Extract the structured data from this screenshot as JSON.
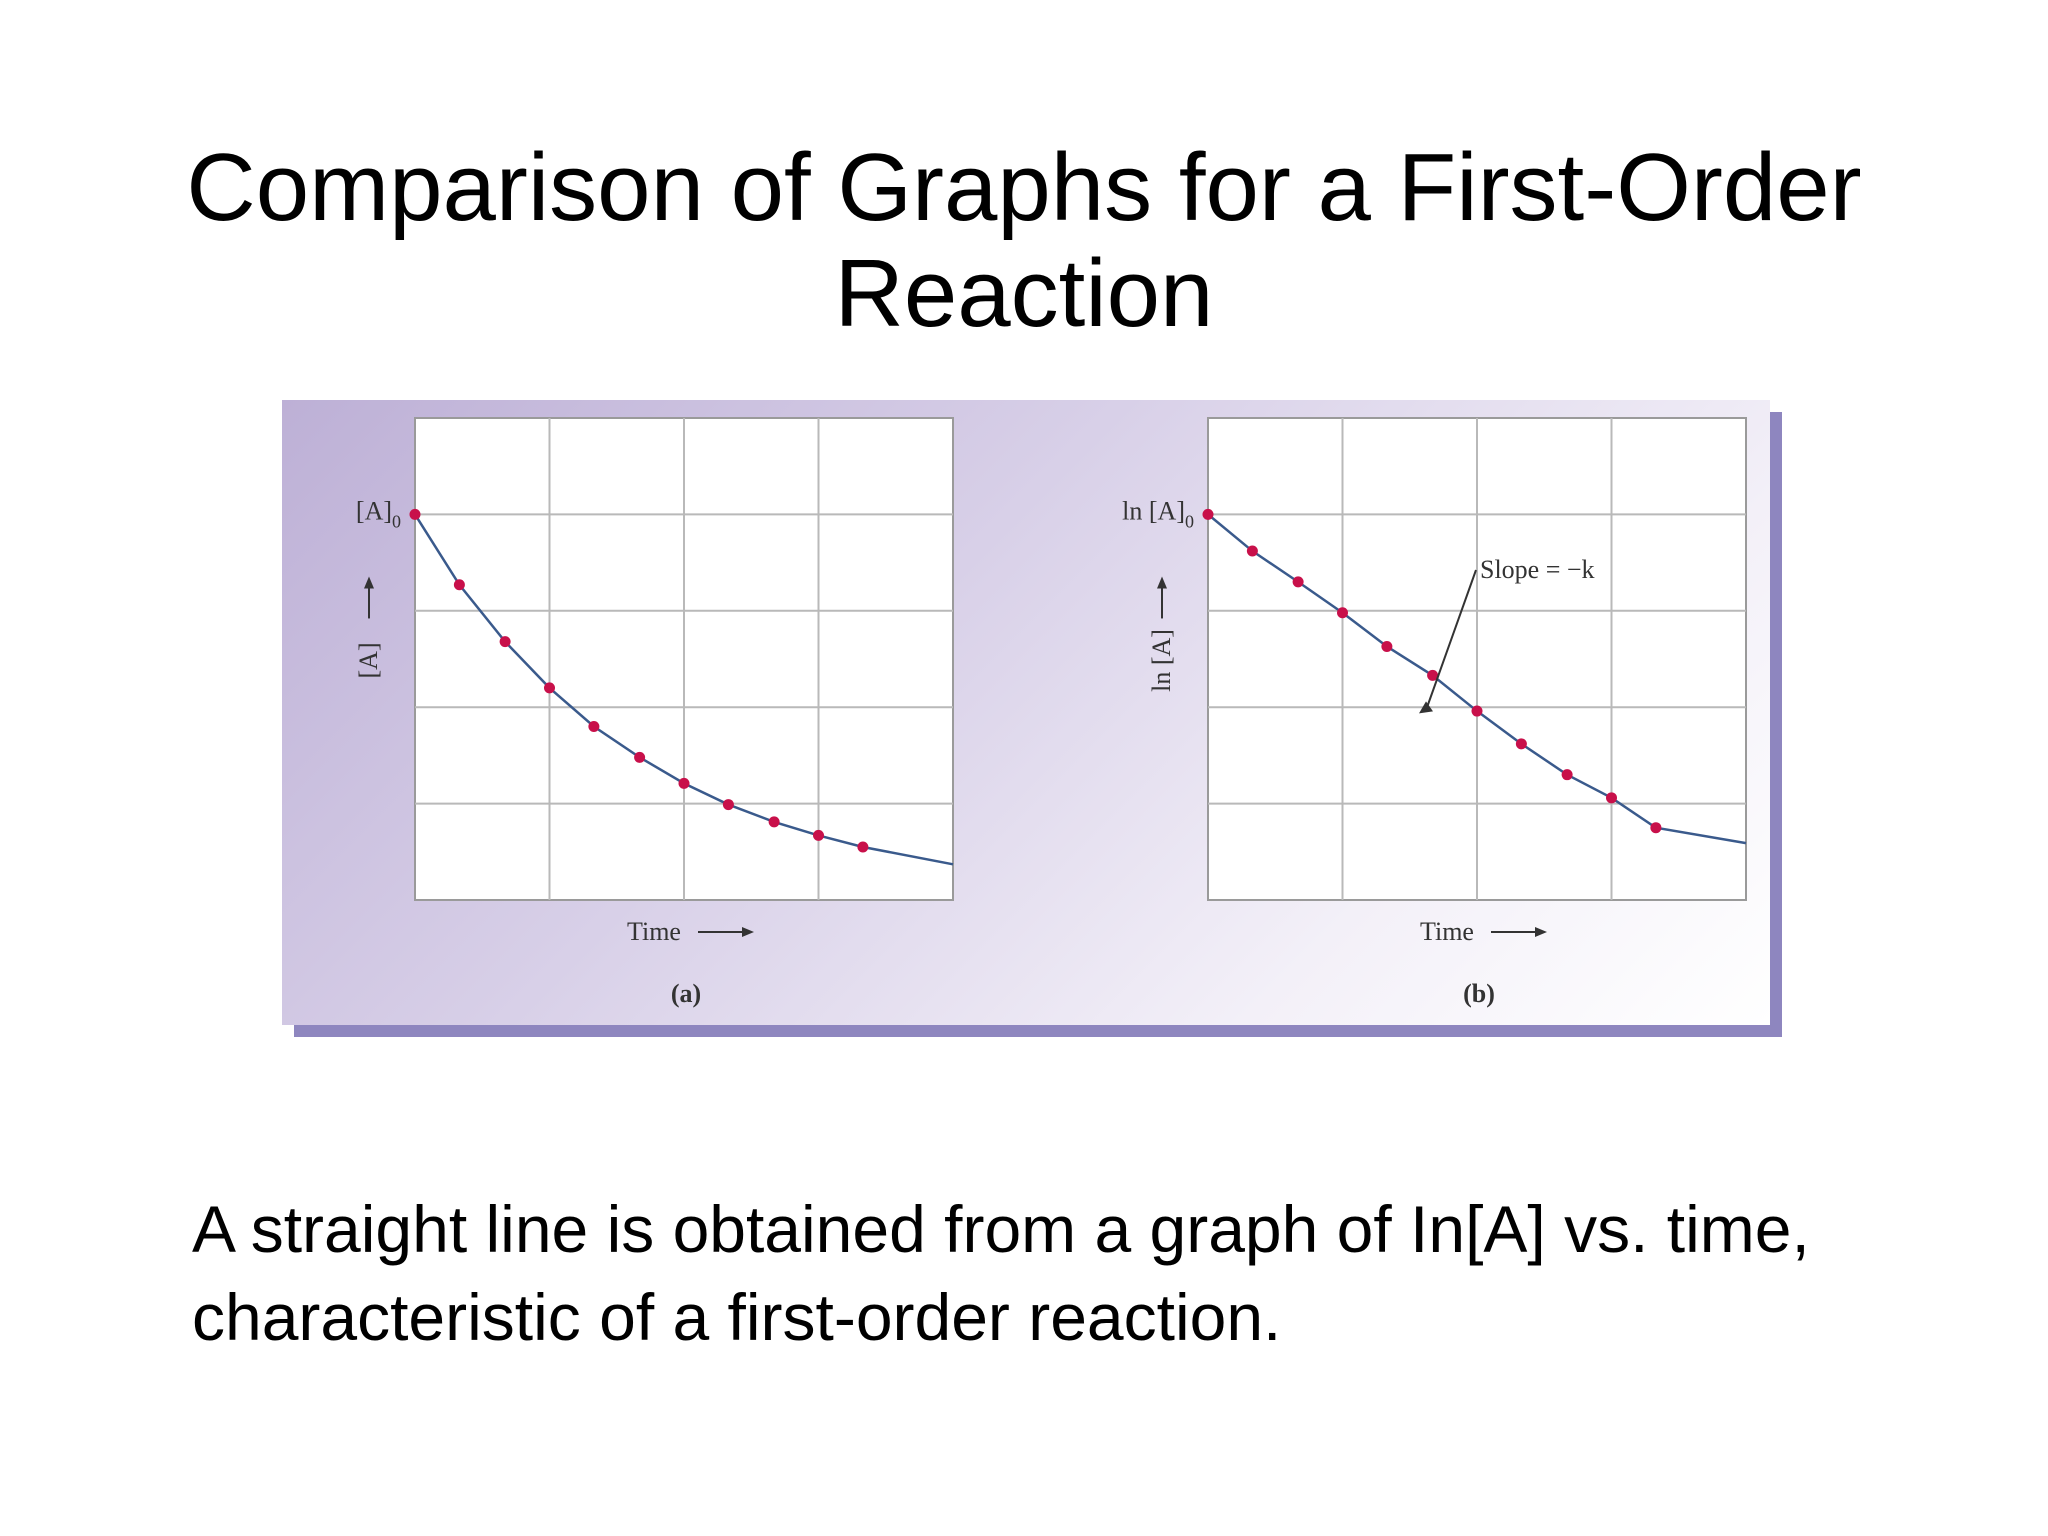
{
  "title": "Comparison of Graphs for a First-Order Reaction",
  "caption": {
    "line1": "A straight line is obtained from a graph of In[A] vs. time,",
    "line2": "characteristic of a first-order reaction."
  },
  "colors": {
    "curve": "#3a5a8c",
    "points": "#c8104a",
    "grid": "#b9b9b9",
    "panel_top": "#bdb0d6",
    "panel_shadow": "#8e86bf"
  },
  "chart_data": [
    {
      "type": "line",
      "panel_label": "(a)",
      "xlabel": "Time",
      "ylabel": "[A]",
      "y0_label": "[A]",
      "y0_subscript": "0",
      "xlim": [
        0,
        4
      ],
      "ylim": [
        0,
        5
      ],
      "grid": true,
      "series": [
        {
          "x": [
            0,
            0.33,
            0.67,
            1.0,
            1.33,
            1.67,
            2.0,
            2.33,
            2.67,
            3.0,
            3.33
          ],
          "values": [
            4.0,
            3.27,
            2.68,
            2.2,
            1.8,
            1.48,
            1.21,
            0.99,
            0.81,
            0.67,
            0.55
          ]
        }
      ],
      "curve_end": {
        "x": 4.0,
        "y": 0.37
      }
    },
    {
      "type": "line",
      "panel_label": "(b)",
      "xlabel": "Time",
      "ylabel": "ln [A]",
      "y0_label": "ln [A]",
      "y0_subscript": "0",
      "xlim": [
        0,
        4
      ],
      "ylim": [
        0,
        5
      ],
      "grid": true,
      "annotation": "Slope = −k",
      "series": [
        {
          "x": [
            0,
            0.33,
            0.67,
            1.0,
            1.33,
            1.67,
            2.0,
            2.33,
            2.67,
            3.0,
            3.33
          ],
          "values": [
            4.0,
            3.62,
            3.3,
            2.98,
            2.63,
            2.33,
            1.96,
            1.62,
            1.3,
            1.06,
            0.75
          ]
        }
      ],
      "curve_end": {
        "x": 4.0,
        "y": 0.59
      }
    }
  ]
}
